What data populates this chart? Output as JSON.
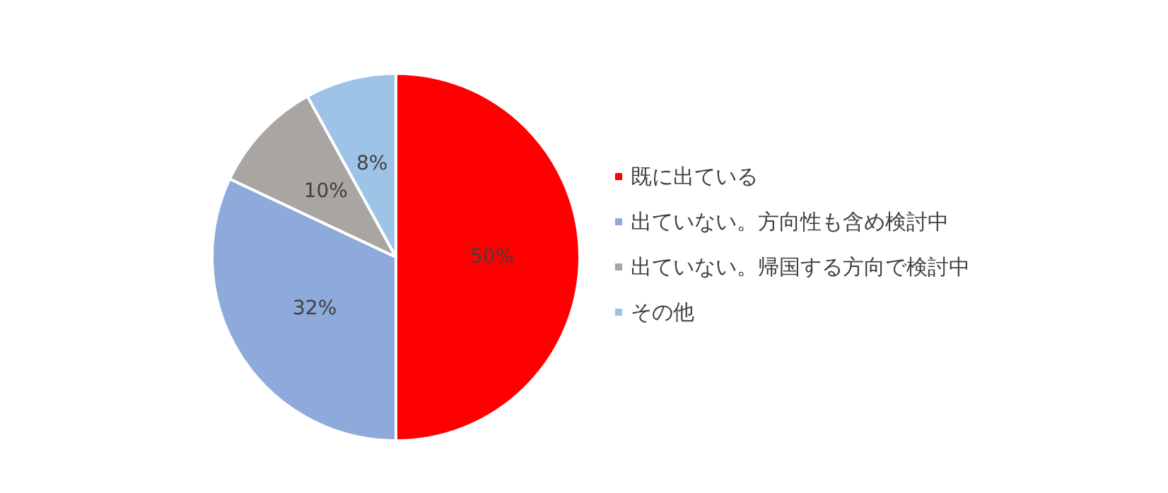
{
  "chart_data": {
    "type": "pie",
    "categories": [
      "既に出ている",
      "出ていない。方向性も含め検討中",
      "出ていない。帰国する方向で検討中",
      "その他"
    ],
    "values": [
      50,
      32,
      10,
      8
    ],
    "colors": [
      "#ff0000",
      "#8eaadb",
      "#a9a5a2",
      "#9dc3e6"
    ],
    "value_labels": [
      "50%",
      "32%",
      "10%",
      "8%"
    ],
    "legend": "right"
  }
}
